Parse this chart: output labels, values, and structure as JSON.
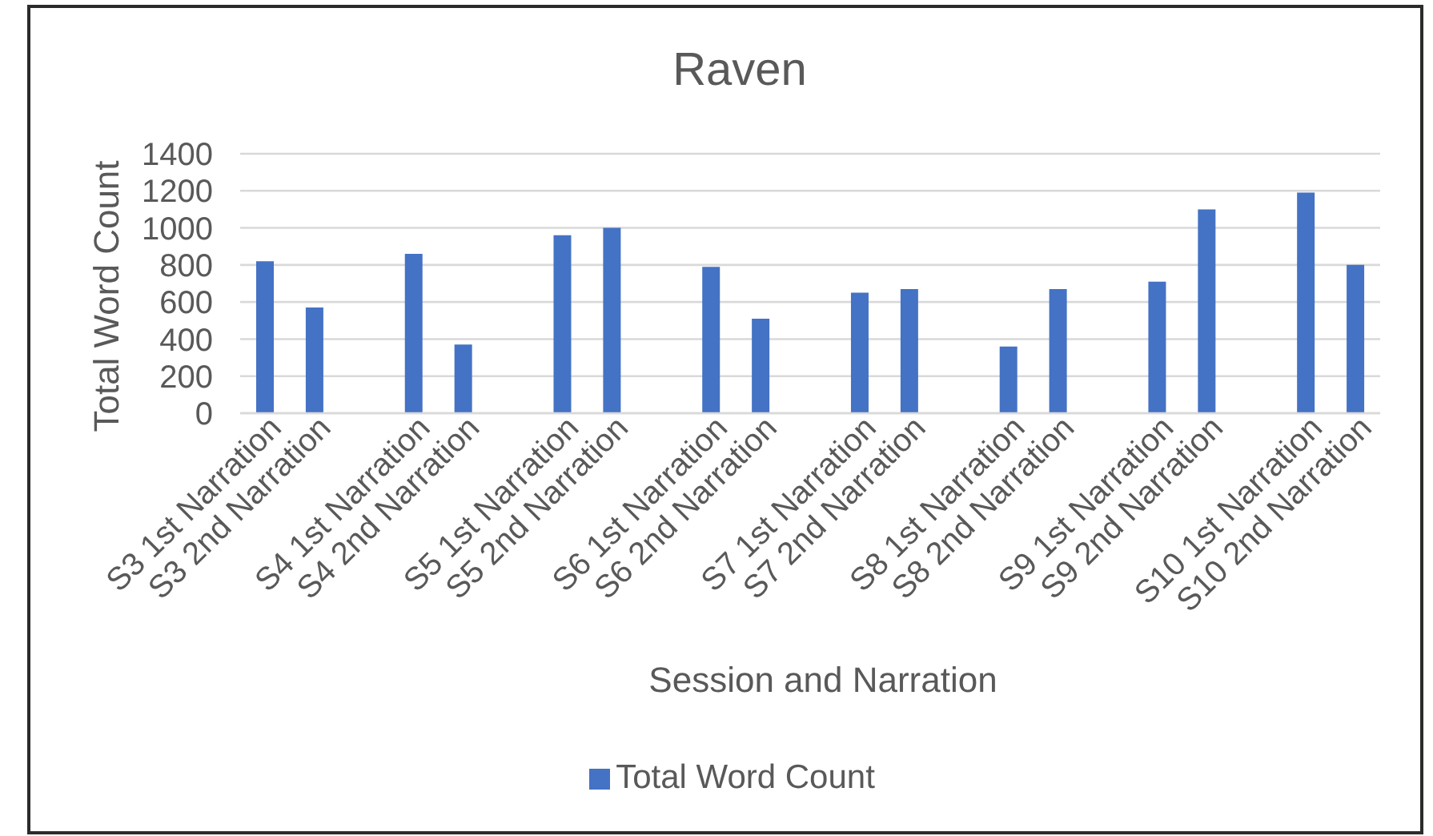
{
  "chart_data": {
    "type": "bar",
    "title": "Raven",
    "xlabel": "Session and Narration",
    "ylabel": "Total Word Count",
    "categories": [
      "S3 1st Narration",
      "S3 2nd Narration",
      null,
      "S4 1st Narration",
      "S4 2nd Narration",
      null,
      "S5 1st Narration",
      "S5 2nd Narration",
      null,
      "S6 1st Narration",
      "S6 2nd Narration",
      null,
      "S7 1st Narration",
      "S7 2nd Narration",
      null,
      "S8 1st Narration",
      "S8 2nd Narration",
      null,
      "S9 1st Narration",
      "S9 2nd Narration",
      null,
      "S10 1st Narration",
      "S10 2nd Narration"
    ],
    "series": [
      {
        "name": "Total Word Count",
        "color": "#4472c4",
        "values": [
          820,
          570,
          null,
          860,
          370,
          null,
          960,
          1000,
          null,
          790,
          510,
          null,
          650,
          670,
          null,
          360,
          670,
          null,
          710,
          1100,
          null,
          1190,
          800
        ]
      }
    ],
    "ylim": [
      0,
      1400
    ],
    "yticks": [
      0,
      200,
      400,
      600,
      800,
      1000,
      1200,
      1400
    ],
    "grid": "y",
    "legend": "bottom"
  }
}
